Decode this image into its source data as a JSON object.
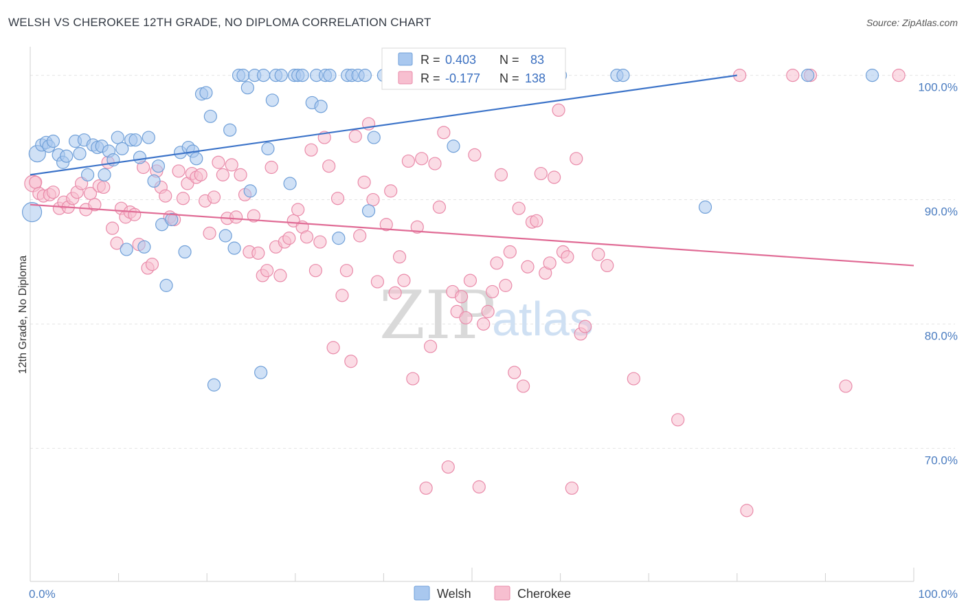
{
  "title": "WELSH VS CHEROKEE 12TH GRADE, NO DIPLOMA CORRELATION CHART",
  "source": "Source: ZipAtlas.com",
  "watermark": {
    "zip": "ZIP",
    "atlas": "atlas"
  },
  "colors": {
    "welsh_fill": "#a9c8ef",
    "welsh_stroke": "#6f9fd8",
    "welsh_line": "#3a72c8",
    "cherokee_fill": "#f7bfd0",
    "cherokee_stroke": "#e98aa9",
    "cherokee_line": "#e06b95",
    "grid": "#e4e4e4",
    "tick_text": "#4a7cc0"
  },
  "legend": {
    "welsh": {
      "r_label": "R =",
      "r_value": "0.403",
      "n_label": "N =",
      "n_value": "83"
    },
    "cherokee": {
      "r_label": "R =",
      "r_value": "-0.177",
      "n_label": "N =",
      "n_value": "138"
    }
  },
  "bottom_legend": [
    "Welsh",
    "Cherokee"
  ],
  "chart_data": {
    "type": "scatter",
    "title": "WELSH VS CHEROKEE 12TH GRADE, NO DIPLOMA CORRELATION CHART",
    "xlabel": "",
    "ylabel": "12th Grade, No Diploma",
    "xlim": [
      0,
      100
    ],
    "ylim": [
      59.3,
      102.3
    ],
    "x_tick_labels": [
      "0.0%",
      "100.0%"
    ],
    "y_ticks": [
      100,
      90,
      80,
      70
    ],
    "y_tick_labels": [
      "100.0%",
      "90.0%",
      "80.0%",
      "70.0%"
    ],
    "grid": true,
    "legend_position": "top-center",
    "series": [
      {
        "name": "Welsh",
        "R": 0.403,
        "N": 83,
        "trend": [
          [
            0,
            92.0
          ],
          [
            80,
            100.0
          ]
        ],
        "points": [
          [
            0.2,
            89.0,
            14
          ],
          [
            0.8,
            93.7,
            12
          ],
          [
            1.3,
            94.4,
            9
          ],
          [
            1.8,
            94.6,
            9
          ],
          [
            2.1,
            94.3,
            9
          ],
          [
            2.6,
            94.7,
            9
          ],
          [
            3.2,
            93.6,
            9
          ],
          [
            3.7,
            93.0,
            9
          ],
          [
            4.1,
            93.5,
            9
          ],
          [
            5.1,
            94.7,
            9
          ],
          [
            5.6,
            93.7,
            9
          ],
          [
            6.1,
            94.8,
            9
          ],
          [
            6.5,
            92.0,
            9
          ],
          [
            7.1,
            94.4,
            9
          ],
          [
            7.6,
            94.2,
            9
          ],
          [
            8.1,
            94.3,
            9
          ],
          [
            8.4,
            92.0,
            9
          ],
          [
            8.9,
            93.9,
            9
          ],
          [
            9.4,
            93.2,
            9
          ],
          [
            9.9,
            95.0,
            9
          ],
          [
            10.4,
            94.1,
            9
          ],
          [
            10.9,
            86.0,
            9
          ],
          [
            11.4,
            94.8,
            9
          ],
          [
            11.9,
            94.8,
            9
          ],
          [
            12.4,
            93.4,
            9
          ],
          [
            12.9,
            86.2,
            9
          ],
          [
            13.4,
            95.0,
            9
          ],
          [
            14.0,
            91.5,
            9
          ],
          [
            14.5,
            92.7,
            9
          ],
          [
            14.9,
            88.0,
            9
          ],
          [
            15.4,
            83.1,
            9
          ],
          [
            16.0,
            88.4,
            9
          ],
          [
            17.0,
            93.8,
            9
          ],
          [
            17.5,
            85.8,
            9
          ],
          [
            17.9,
            94.2,
            9
          ],
          [
            18.4,
            93.9,
            9
          ],
          [
            18.8,
            93.3,
            9
          ],
          [
            19.4,
            98.5,
            9
          ],
          [
            19.9,
            98.6,
            9
          ],
          [
            20.4,
            96.7,
            9
          ],
          [
            20.8,
            75.1,
            9
          ],
          [
            22.1,
            87.1,
            9
          ],
          [
            22.6,
            95.6,
            9
          ],
          [
            23.1,
            86.1,
            9
          ],
          [
            23.6,
            100.0,
            9
          ],
          [
            24.1,
            100.0,
            9
          ],
          [
            24.6,
            99.0,
            9
          ],
          [
            24.9,
            90.7,
            9
          ],
          [
            25.4,
            100.0,
            9
          ],
          [
            26.1,
            76.1,
            9
          ],
          [
            26.4,
            100.0,
            9
          ],
          [
            26.9,
            94.1,
            9
          ],
          [
            27.4,
            98.0,
            9
          ],
          [
            27.8,
            100.0,
            9
          ],
          [
            28.4,
            100.0,
            9
          ],
          [
            29.4,
            91.3,
            9
          ],
          [
            29.9,
            100.0,
            9
          ],
          [
            30.3,
            100.0,
            9
          ],
          [
            30.8,
            100.0,
            9
          ],
          [
            31.9,
            97.8,
            9
          ],
          [
            32.4,
            100.0,
            9
          ],
          [
            32.9,
            97.5,
            9
          ],
          [
            33.4,
            100.0,
            9
          ],
          [
            33.9,
            100.0,
            9
          ],
          [
            34.9,
            86.9,
            9
          ],
          [
            35.9,
            100.0,
            9
          ],
          [
            36.4,
            100.0,
            9
          ],
          [
            37.1,
            100.0,
            9
          ],
          [
            37.9,
            100.0,
            9
          ],
          [
            38.3,
            89.1,
            9
          ],
          [
            38.9,
            95.0,
            9
          ],
          [
            40.0,
            100.0,
            9
          ],
          [
            44.0,
            100.0,
            9
          ],
          [
            44.9,
            100.0,
            9
          ],
          [
            47.9,
            94.3,
            9
          ],
          [
            52.0,
            100.0,
            9
          ],
          [
            56.4,
            100.0,
            9
          ],
          [
            60.0,
            100.0,
            9
          ],
          [
            66.4,
            100.0,
            9
          ],
          [
            67.1,
            100.0,
            9
          ],
          [
            76.4,
            89.4,
            9
          ],
          [
            88.0,
            100.0,
            9
          ],
          [
            95.3,
            100.0,
            9
          ]
        ]
      },
      {
        "name": "Cherokee",
        "R": -0.177,
        "N": 138,
        "trend": [
          [
            0,
            89.6
          ],
          [
            100,
            84.7
          ]
        ],
        "points": [
          [
            0.3,
            91.3,
            12
          ],
          [
            0.6,
            91.4,
            9
          ],
          [
            1.0,
            90.5,
            9
          ],
          [
            1.5,
            90.3,
            9
          ],
          [
            2.2,
            90.4,
            9
          ],
          [
            2.6,
            90.6,
            9
          ],
          [
            3.3,
            89.3,
            9
          ],
          [
            3.8,
            89.8,
            9
          ],
          [
            4.3,
            89.4,
            9
          ],
          [
            4.8,
            90.1,
            9
          ],
          [
            5.3,
            90.6,
            9
          ],
          [
            5.8,
            91.3,
            9
          ],
          [
            6.3,
            89.2,
            9
          ],
          [
            6.8,
            90.5,
            9
          ],
          [
            7.3,
            89.6,
            9
          ],
          [
            7.8,
            91.1,
            9
          ],
          [
            8.3,
            91.0,
            9
          ],
          [
            8.8,
            93.0,
            9
          ],
          [
            9.3,
            87.7,
            9
          ],
          [
            9.8,
            86.5,
            9
          ],
          [
            10.3,
            89.3,
            9
          ],
          [
            10.8,
            88.6,
            9
          ],
          [
            11.3,
            89.0,
            9
          ],
          [
            11.8,
            88.8,
            9
          ],
          [
            12.3,
            86.4,
            9
          ],
          [
            12.8,
            92.6,
            9
          ],
          [
            13.3,
            84.5,
            9
          ],
          [
            13.8,
            84.8,
            9
          ],
          [
            14.3,
            92.3,
            9
          ],
          [
            14.8,
            91.0,
            9
          ],
          [
            15.3,
            90.3,
            9
          ],
          [
            15.8,
            88.6,
            9
          ],
          [
            16.3,
            88.4,
            9
          ],
          [
            16.8,
            92.3,
            9
          ],
          [
            17.3,
            90.1,
            9
          ],
          [
            17.8,
            91.3,
            9
          ],
          [
            18.3,
            92.1,
            9
          ],
          [
            18.8,
            91.8,
            9
          ],
          [
            19.3,
            92.0,
            9
          ],
          [
            19.8,
            89.9,
            9
          ],
          [
            20.3,
            87.3,
            9
          ],
          [
            20.8,
            90.2,
            9
          ],
          [
            21.3,
            93.0,
            9
          ],
          [
            21.8,
            92.0,
            9
          ],
          [
            22.3,
            88.5,
            9
          ],
          [
            22.8,
            92.8,
            9
          ],
          [
            23.3,
            88.6,
            9
          ],
          [
            23.8,
            92.0,
            9
          ],
          [
            24.3,
            90.4,
            9
          ],
          [
            24.8,
            85.8,
            9
          ],
          [
            25.3,
            88.7,
            9
          ],
          [
            25.8,
            85.7,
            9
          ],
          [
            26.3,
            83.9,
            9
          ],
          [
            26.8,
            84.3,
            9
          ],
          [
            27.3,
            92.6,
            9
          ],
          [
            27.8,
            86.2,
            9
          ],
          [
            28.3,
            83.9,
            9
          ],
          [
            28.8,
            86.6,
            9
          ],
          [
            29.3,
            86.9,
            9
          ],
          [
            29.8,
            88.3,
            9
          ],
          [
            30.3,
            89.2,
            9
          ],
          [
            30.8,
            87.8,
            9
          ],
          [
            31.3,
            87.0,
            9
          ],
          [
            31.8,
            94.0,
            9
          ],
          [
            32.3,
            84.3,
            9
          ],
          [
            32.8,
            86.6,
            9
          ],
          [
            33.3,
            95.0,
            9
          ],
          [
            33.8,
            92.7,
            9
          ],
          [
            34.3,
            78.1,
            9
          ],
          [
            34.8,
            90.1,
            9
          ],
          [
            35.3,
            82.3,
            9
          ],
          [
            35.8,
            84.3,
            9
          ],
          [
            36.3,
            77.0,
            9
          ],
          [
            36.8,
            95.1,
            9
          ],
          [
            37.3,
            87.1,
            9
          ],
          [
            37.8,
            91.4,
            9
          ],
          [
            38.3,
            96.1,
            9
          ],
          [
            38.8,
            90.0,
            9
          ],
          [
            39.3,
            83.4,
            9
          ],
          [
            40.3,
            88.0,
            9
          ],
          [
            40.8,
            90.7,
            9
          ],
          [
            41.3,
            82.5,
            9
          ],
          [
            41.8,
            85.4,
            9
          ],
          [
            42.3,
            83.5,
            9
          ],
          [
            42.8,
            93.1,
            9
          ],
          [
            43.3,
            75.6,
            9
          ],
          [
            43.8,
            87.8,
            9
          ],
          [
            44.3,
            93.3,
            9
          ],
          [
            44.8,
            66.8,
            9
          ],
          [
            45.3,
            78.2,
            9
          ],
          [
            45.8,
            92.9,
            9
          ],
          [
            46.3,
            89.4,
            9
          ],
          [
            46.8,
            95.4,
            9
          ],
          [
            47.3,
            68.5,
            9
          ],
          [
            47.8,
            82.6,
            9
          ],
          [
            48.3,
            81.0,
            9
          ],
          [
            48.8,
            82.2,
            9
          ],
          [
            49.3,
            80.5,
            9
          ],
          [
            49.8,
            83.5,
            9
          ],
          [
            50.3,
            93.6,
            9
          ],
          [
            50.8,
            66.9,
            9
          ],
          [
            51.3,
            80.0,
            9
          ],
          [
            51.8,
            81.0,
            9
          ],
          [
            52.3,
            82.6,
            9
          ],
          [
            52.8,
            84.9,
            9
          ],
          [
            53.3,
            92.0,
            9
          ],
          [
            53.8,
            83.1,
            9
          ],
          [
            54.3,
            85.8,
            9
          ],
          [
            54.8,
            76.1,
            9
          ],
          [
            55.3,
            89.3,
            9
          ],
          [
            55.8,
            75.0,
            9
          ],
          [
            56.3,
            84.6,
            9
          ],
          [
            56.8,
            88.2,
            9
          ],
          [
            57.3,
            88.3,
            9
          ],
          [
            57.8,
            92.1,
            9
          ],
          [
            58.3,
            84.1,
            9
          ],
          [
            58.8,
            84.9,
            9
          ],
          [
            59.3,
            91.8,
            9
          ],
          [
            59.8,
            97.2,
            9
          ],
          [
            60.3,
            85.8,
            9
          ],
          [
            60.8,
            85.4,
            9
          ],
          [
            61.3,
            66.8,
            9
          ],
          [
            61.8,
            93.3,
            9
          ],
          [
            62.3,
            79.2,
            9
          ],
          [
            62.8,
            79.8,
            9
          ],
          [
            64.3,
            85.6,
            9
          ],
          [
            65.3,
            84.7,
            9
          ],
          [
            68.3,
            75.6,
            9
          ],
          [
            73.3,
            72.3,
            9
          ],
          [
            80.3,
            100.0,
            9
          ],
          [
            81.1,
            65.0,
            9
          ],
          [
            86.3,
            100.0,
            9
          ],
          [
            88.3,
            100.0,
            9
          ],
          [
            92.3,
            75.0,
            9
          ],
          [
            98.3,
            100.0,
            9
          ]
        ]
      }
    ]
  }
}
